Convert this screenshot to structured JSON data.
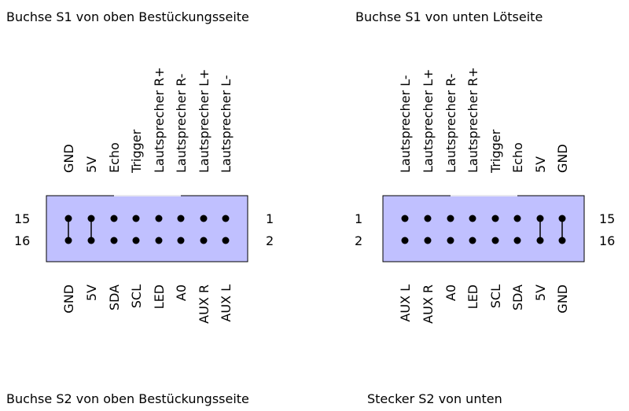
{
  "titles": {
    "s1_top": "Buchse S1 von oben Bestückungsseite",
    "s1_bottom": "Buchse S1 von unten Lötseite",
    "s2_top": "Buchse S2 von oben Bestückungsseite",
    "s2_bottom": "Stecker S2 von unten"
  },
  "left_connector": {
    "top_labels": [
      "GND",
      "5V",
      "Echo",
      "Trigger",
      "Lautsprecher R+",
      "Lautsprecher R-",
      "Lautsprecher L+",
      "Lautsprecher L-"
    ],
    "bottom_labels": [
      "GND",
      "5V",
      "SDA",
      "SCL",
      "LED",
      "A0",
      "AUX R",
      "AUX L"
    ],
    "left_pins": [
      "15",
      "16"
    ],
    "right_pins": [
      "1",
      "2"
    ]
  },
  "right_connector": {
    "top_labels": [
      "Lautsprecher L-",
      "Lautsprecher L+",
      "Lautsprecher R-",
      "Lautsprecher R+",
      "Trigger",
      "Echo",
      "5V",
      "GND"
    ],
    "bottom_labels": [
      "AUX L",
      "AUX R",
      "A0",
      "LED",
      "SCL",
      "SDA",
      "5V",
      "GND"
    ],
    "left_pins": [
      "1",
      "2"
    ],
    "right_pins": [
      "15",
      "16"
    ]
  },
  "colors": {
    "connector_fill": "#c0c0ff",
    "line": "#000000"
  }
}
